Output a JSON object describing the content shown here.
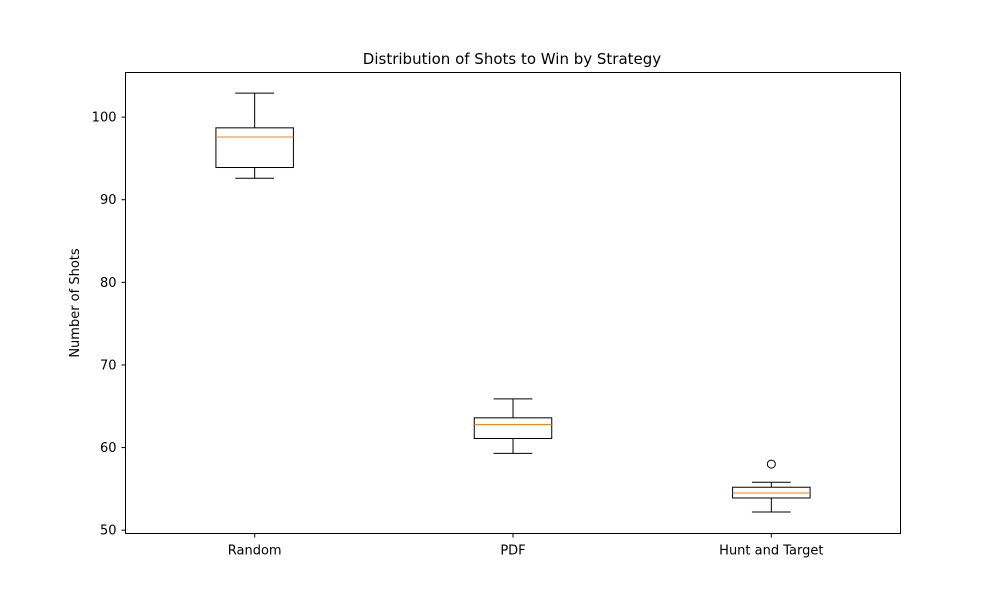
{
  "chart_data": {
    "type": "box",
    "title": "Distribution of Shots to Win by Strategy",
    "xlabel": "",
    "ylabel": "Number of Shots",
    "ylim": [
      49.6,
      105.4
    ],
    "yticks": [
      50,
      60,
      70,
      80,
      90,
      100
    ],
    "grid": false,
    "categories": [
      "Random",
      "PDF",
      "Hunt and Target"
    ],
    "boxes": [
      {
        "category": "Random",
        "whisker_low": 92.6,
        "q1": 93.9,
        "median": 97.6,
        "q3": 98.7,
        "whisker_high": 102.9,
        "outliers": []
      },
      {
        "category": "PDF",
        "whisker_low": 59.3,
        "q1": 61.1,
        "median": 62.8,
        "q3": 63.6,
        "whisker_high": 65.9,
        "outliers": []
      },
      {
        "category": "Hunt and Target",
        "whisker_low": 52.2,
        "q1": 53.9,
        "median": 54.5,
        "q3": 55.2,
        "whisker_high": 55.8,
        "outliers": [
          58.0
        ]
      }
    ],
    "colors": {
      "box": "#000000",
      "median": "#ff7f0e"
    }
  }
}
